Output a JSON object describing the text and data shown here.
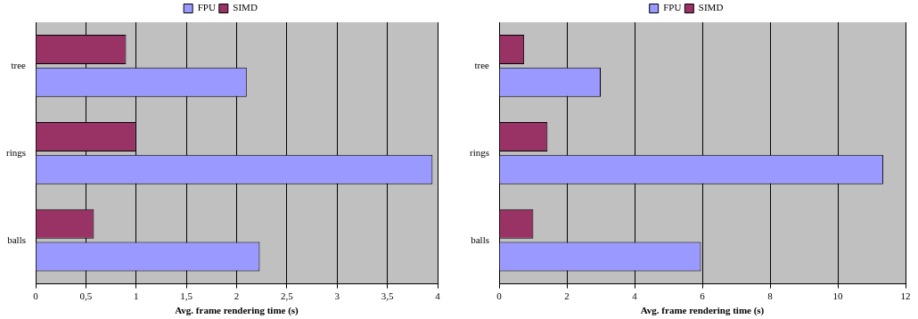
{
  "chart_data": [
    {
      "type": "bar",
      "orientation": "horizontal",
      "categories": [
        "tree",
        "rings",
        "balls"
      ],
      "xlabel": "Avg. frame rendering time (s)",
      "series": [
        {
          "name": "FPU",
          "color": "#9999ff",
          "values": [
            2.1,
            3.95,
            2.23
          ]
        },
        {
          "name": "SIMD",
          "color": "#993366",
          "values": [
            0.9,
            1.0,
            0.58
          ]
        }
      ],
      "xlim": [
        0,
        4
      ],
      "xticks": [
        0,
        {
          "value": 0.5,
          "label": "0,5"
        },
        1,
        {
          "value": 1.5,
          "label": "1,5"
        },
        2,
        {
          "value": 2.5,
          "label": "2,5"
        },
        3,
        {
          "value": 3.5,
          "label": "3,5"
        },
        4
      ],
      "grid": "x",
      "legend": "top"
    },
    {
      "type": "bar",
      "orientation": "horizontal",
      "categories": [
        "tree",
        "rings",
        "balls"
      ],
      "xlabel": "Avg. frame rendering time (s)",
      "series": [
        {
          "name": "FPU",
          "color": "#9999ff",
          "values": [
            3.0,
            11.34,
            5.96
          ]
        },
        {
          "name": "SIMD",
          "color": "#993366",
          "values": [
            0.74,
            1.43,
            1.01
          ]
        }
      ],
      "xlim": [
        0,
        12
      ],
      "xticks": [
        0,
        2,
        4,
        6,
        8,
        10,
        12
      ],
      "grid": "x",
      "legend": "top"
    }
  ]
}
